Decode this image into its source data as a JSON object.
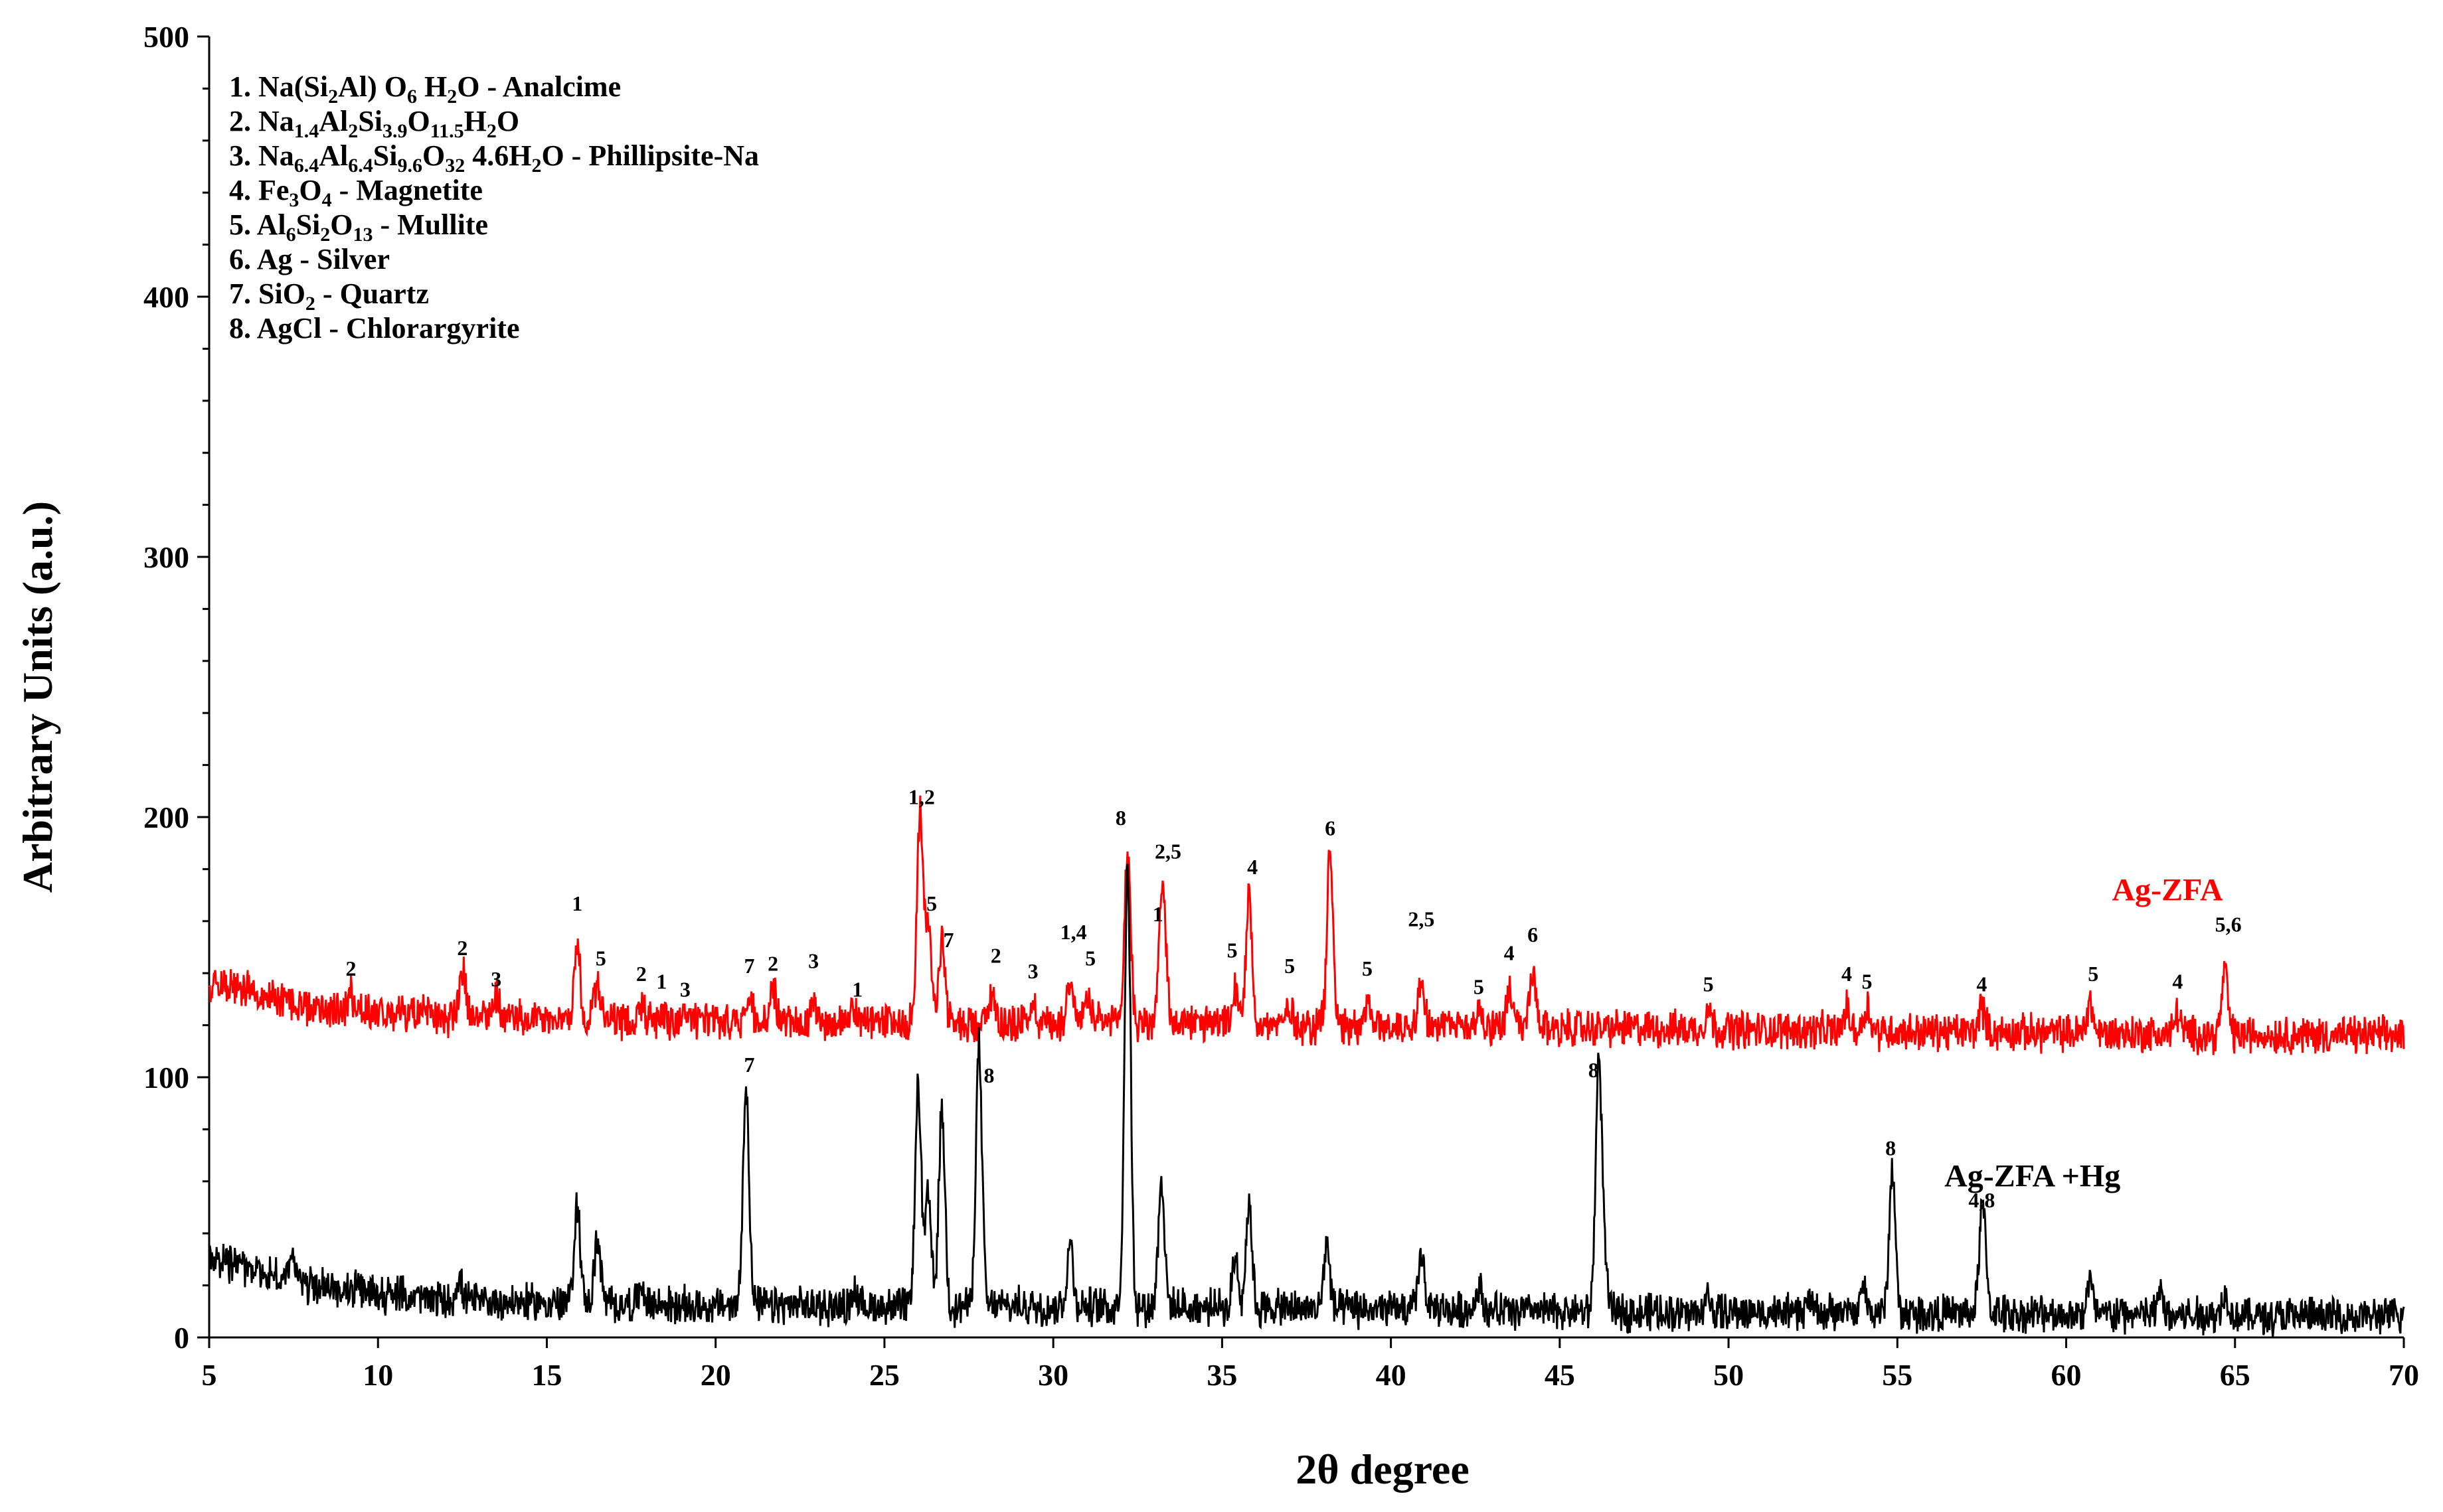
{
  "chart_data": {
    "type": "line",
    "xlabel": "2θ degree",
    "ylabel": "Arbitrary Units (a.u.)",
    "xlim": [
      5,
      70
    ],
    "ylim": [
      0,
      500
    ],
    "xticks": [
      "5",
      "10",
      "15",
      "20",
      "25",
      "30",
      "35",
      "40",
      "45",
      "50",
      "55",
      "60",
      "65",
      "70"
    ],
    "yticks": [
      "0",
      "100",
      "200",
      "300",
      "400",
      "500"
    ],
    "grid": false,
    "legend_entries": [
      {
        "prefix": "1. ",
        "parts": [
          [
            "Na(Si",
            ""
          ],
          [
            "2",
            "sub"
          ],
          [
            "Al) O",
            ""
          ],
          [
            "6",
            "sub"
          ],
          [
            " H",
            ""
          ],
          [
            "2",
            "sub"
          ],
          [
            "O - Analcime",
            ""
          ]
        ]
      },
      {
        "prefix": "2. ",
        "parts": [
          [
            "Na",
            ""
          ],
          [
            "1.4",
            "sub"
          ],
          [
            "Al",
            ""
          ],
          [
            "2",
            "sub"
          ],
          [
            "Si",
            ""
          ],
          [
            "3.9",
            "sub"
          ],
          [
            "O",
            ""
          ],
          [
            "11.5",
            "sub"
          ],
          [
            "H",
            ""
          ],
          [
            "2",
            "sub"
          ],
          [
            "O",
            ""
          ]
        ]
      },
      {
        "prefix": "3. ",
        "parts": [
          [
            "Na",
            ""
          ],
          [
            "6.4",
            "sub"
          ],
          [
            "Al",
            ""
          ],
          [
            "6.4",
            "sub"
          ],
          [
            "Si",
            ""
          ],
          [
            "9.6",
            "sub"
          ],
          [
            "O",
            ""
          ],
          [
            "32",
            "sub"
          ],
          [
            " 4.6H",
            ""
          ],
          [
            "2",
            "sub"
          ],
          [
            "O - Phillipsite-Na",
            ""
          ]
        ]
      },
      {
        "prefix": "4. ",
        "parts": [
          [
            "Fe",
            ""
          ],
          [
            "3",
            "sub"
          ],
          [
            "O",
            ""
          ],
          [
            "4",
            "sub"
          ],
          [
            " - Magnetite",
            ""
          ]
        ]
      },
      {
        "prefix": "5. ",
        "parts": [
          [
            "Al",
            ""
          ],
          [
            "6",
            "sub"
          ],
          [
            "Si",
            ""
          ],
          [
            "2",
            "sub"
          ],
          [
            "O",
            ""
          ],
          [
            "13",
            "sub"
          ],
          [
            " - Mullite",
            ""
          ]
        ]
      },
      {
        "prefix": "6. ",
        "parts": [
          [
            "Ag - Silver",
            ""
          ]
        ]
      },
      {
        "prefix": "7. ",
        "parts": [
          [
            "SiO",
            ""
          ],
          [
            "2",
            "sub"
          ],
          [
            " - Quartz",
            ""
          ]
        ]
      },
      {
        "prefix": "8. ",
        "parts": [
          [
            "AgCl - Chlorargyrite",
            ""
          ]
        ]
      }
    ],
    "series": [
      {
        "name": "Ag-ZFA",
        "color": "#ff0000",
        "baseline": [
          [
            5,
            137
          ],
          [
            8,
            127
          ],
          [
            12,
            123
          ],
          [
            20,
            121
          ],
          [
            30,
            121
          ],
          [
            45,
            119
          ],
          [
            60,
            117
          ],
          [
            70,
            116
          ]
        ],
        "peaks": [
          [
            9.2,
            7
          ],
          [
            12.5,
            18
          ],
          [
            13.5,
            9
          ],
          [
            15.9,
            30
          ],
          [
            16.5,
            13
          ],
          [
            17.8,
            6
          ],
          [
            18.4,
            5
          ],
          [
            19.1,
            4
          ],
          [
            21,
            10
          ],
          [
            21.7,
            12
          ],
          [
            22.9,
            10
          ],
          [
            24.1,
            6
          ],
          [
            26.05,
            80
          ],
          [
            26.3,
            38
          ],
          [
            26.7,
            32
          ],
          [
            28.2,
            12
          ],
          [
            29.4,
            8
          ],
          [
            30.5,
            18
          ],
          [
            31,
            10
          ],
          [
            32.2,
            67
          ],
          [
            33.2,
            37
          ],
          [
            33.3,
            22
          ],
          [
            35.4,
            12
          ],
          [
            35.8,
            50
          ],
          [
            37,
            8
          ],
          [
            38.2,
            68
          ],
          [
            39.3,
            8
          ],
          [
            40.9,
            20
          ],
          [
            42.6,
            7
          ],
          [
            43.5,
            14
          ],
          [
            44.2,
            20
          ],
          [
            49.4,
            8
          ],
          [
            53.5,
            8
          ],
          [
            54.1,
            10
          ],
          [
            57.5,
            10
          ],
          [
            60.7,
            12
          ],
          [
            63.3,
            8
          ],
          [
            64.7,
            24
          ]
        ],
        "labels": [
          {
            "x": 9.2,
            "y": 139,
            "text": "2"
          },
          {
            "x": 12.5,
            "y": 147,
            "text": "2"
          },
          {
            "x": 13.5,
            "y": 135,
            "text": "3"
          },
          {
            "x": 15.9,
            "y": 164,
            "text": "1"
          },
          {
            "x": 16.6,
            "y": 143,
            "text": "5"
          },
          {
            "x": 17.8,
            "y": 137,
            "text": "2"
          },
          {
            "x": 18.4,
            "y": 134,
            "text": "1"
          },
          {
            "x": 19.1,
            "y": 131,
            "text": "3"
          },
          {
            "x": 21,
            "y": 140,
            "text": "7"
          },
          {
            "x": 21.7,
            "y": 141,
            "text": "2"
          },
          {
            "x": 22.9,
            "y": 142,
            "text": "3"
          },
          {
            "x": 24.2,
            "y": 131,
            "text": "1"
          },
          {
            "x": 26.1,
            "y": 205,
            "text": "1,2"
          },
          {
            "x": 26.4,
            "y": 164,
            "text": "5"
          },
          {
            "x": 26.9,
            "y": 150,
            "text": "7"
          },
          {
            "x": 28.3,
            "y": 144,
            "text": "2"
          },
          {
            "x": 29.4,
            "y": 138,
            "text": "3"
          },
          {
            "x": 30.6,
            "y": 153,
            "text": "1,4"
          },
          {
            "x": 31.1,
            "y": 143,
            "text": "5"
          },
          {
            "x": 32,
            "y": 197,
            "text": "8"
          },
          {
            "x": 33.4,
            "y": 184,
            "text": "2,5"
          },
          {
            "x": 33.1,
            "y": 160,
            "text": "1"
          },
          {
            "x": 35.3,
            "y": 146,
            "text": "5"
          },
          {
            "x": 35.9,
            "y": 178,
            "text": "4"
          },
          {
            "x": 37,
            "y": 140,
            "text": "5"
          },
          {
            "x": 38.2,
            "y": 193,
            "text": "6"
          },
          {
            "x": 39.3,
            "y": 139,
            "text": "5"
          },
          {
            "x": 40.9,
            "y": 158,
            "text": "2,5"
          },
          {
            "x": 42.6,
            "y": 132,
            "text": "5"
          },
          {
            "x": 43.5,
            "y": 145,
            "text": "4"
          },
          {
            "x": 44.2,
            "y": 152,
            "text": "6"
          },
          {
            "x": 49.4,
            "y": 133,
            "text": "5"
          },
          {
            "x": 53.5,
            "y": 137,
            "text": "4"
          },
          {
            "x": 54.1,
            "y": 134,
            "text": "5"
          },
          {
            "x": 57.5,
            "y": 133,
            "text": "4"
          },
          {
            "x": 60.8,
            "y": 137,
            "text": "5"
          },
          {
            "x": 63.3,
            "y": 134,
            "text": "4"
          },
          {
            "x": 64.8,
            "y": 156,
            "text": "5,6"
          }
        ]
      },
      {
        "name": "Ag-ZFA +Hg",
        "color": "#000000",
        "baseline": [
          [
            5,
            30
          ],
          [
            6,
            27
          ],
          [
            8,
            20
          ],
          [
            12,
            14
          ],
          [
            20,
            12
          ],
          [
            30,
            12
          ],
          [
            45,
            10
          ],
          [
            60,
            9
          ],
          [
            70,
            8
          ]
        ],
        "peaks": [
          [
            7.5,
            10
          ],
          [
            12.4,
            8
          ],
          [
            15.9,
            38
          ],
          [
            16.5,
            25
          ],
          [
            17.8,
            6
          ],
          [
            20.9,
            86
          ],
          [
            24.1,
            6
          ],
          [
            26.0,
            84
          ],
          [
            26.3,
            42
          ],
          [
            26.7,
            76
          ],
          [
            27.8,
            100
          ],
          [
            30.5,
            24
          ],
          [
            32.2,
            170
          ],
          [
            33.2,
            50
          ],
          [
            35.4,
            20
          ],
          [
            35.8,
            40
          ],
          [
            38.1,
            25
          ],
          [
            40.9,
            22
          ],
          [
            42.6,
            10
          ],
          [
            46.15,
            92
          ],
          [
            46.3,
            20
          ],
          [
            49.4,
            6
          ],
          [
            52.4,
            5
          ],
          [
            54,
            10
          ],
          [
            54.85,
            55
          ],
          [
            57.5,
            34
          ],
          [
            57.6,
            12
          ],
          [
            60.7,
            12
          ],
          [
            62.8,
            8
          ],
          [
            64.7,
            8
          ]
        ],
        "labels": [
          {
            "x": 21,
            "y": 102,
            "text": "7"
          },
          {
            "x": 28.1,
            "y": 98,
            "text": "8"
          },
          {
            "x": 46,
            "y": 100,
            "text": "8"
          },
          {
            "x": 54.8,
            "y": 70,
            "text": "8"
          },
          {
            "x": 57.5,
            "y": 50,
            "text": "4,8"
          }
        ]
      }
    ],
    "series_labels": [
      {
        "text": "Ag-ZFA",
        "x": 63,
        "y": 168,
        "color": "#ff0000"
      },
      {
        "text": "Ag-ZFA +Hg",
        "x": 59,
        "y": 58,
        "color": "#000000"
      }
    ]
  }
}
